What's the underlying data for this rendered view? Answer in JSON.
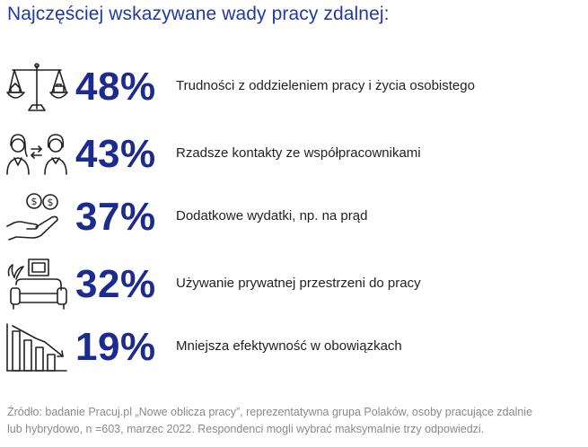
{
  "title": "Najczęściej wskazywane wady  pracy zdalnej:",
  "accent_color": "#1c2b8f",
  "items": [
    {
      "percent": "48%",
      "label": "Trudności z oddzieleniem pracy i życia osobistego",
      "icon": "balance-scale-home-work-icon"
    },
    {
      "percent": "43%",
      "label": "Rzadsze kontakty ze współpracownikami",
      "icon": "two-people-exchange-icon"
    },
    {
      "percent": "37%",
      "label": "Dodatkowe wydatki, np. na prąd",
      "icon": "hand-coins-icon"
    },
    {
      "percent": "32%",
      "label": "Używanie prywatnej przestrzeni do pracy",
      "icon": "armchair-picture-icon"
    },
    {
      "percent": "19%",
      "label": "Mniejsza efektywność w obowiązkach",
      "icon": "declining-bar-chart-icon"
    }
  ],
  "footer": {
    "line1": "Źródło: badanie Pracuj.pl „Nowe oblicza pracy”, reprezentatywna grupa Polaków, osoby pracujące zdalnie",
    "line2": "lub hybrydowo, n =603, marzec 2022. Respondenci mogli wybrać maksymalnie trzy odpowiedzi."
  }
}
